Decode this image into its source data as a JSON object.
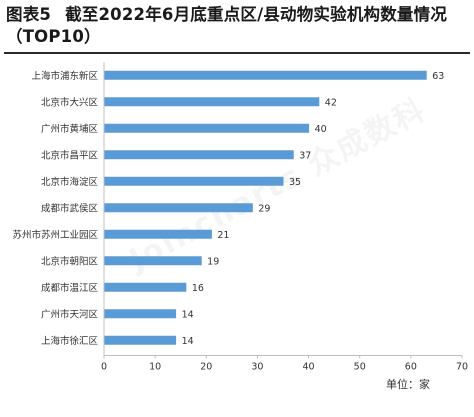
{
  "title": {
    "figure_label": "图表5",
    "text": "截至2022年6月底重点区/县动物实验机构数量情况（TOP10）"
  },
  "unit_label": "单位：家",
  "watermark": "Joincharts 众成数科",
  "colors": {
    "bar": "#5b9bd5",
    "axis": "#bfbfbf",
    "text": "#333333"
  },
  "chart_data": {
    "type": "bar",
    "orientation": "horizontal",
    "categories": [
      "上海市浦东新区",
      "北京市大兴区",
      "广州市黄埔区",
      "北京市昌平区",
      "北京市海淀区",
      "成都市武侯区",
      "苏州市苏州工业园区",
      "北京市朝阳区",
      "成都市温江区",
      "广州市天河区",
      "上海市徐汇区"
    ],
    "values": [
      63,
      42,
      40,
      37,
      35,
      29,
      21,
      19,
      16,
      14,
      14
    ],
    "xlim": [
      0,
      70
    ],
    "xticks": [
      0,
      10,
      20,
      30,
      40,
      50,
      60,
      70
    ],
    "grid": false,
    "legend": "none"
  }
}
